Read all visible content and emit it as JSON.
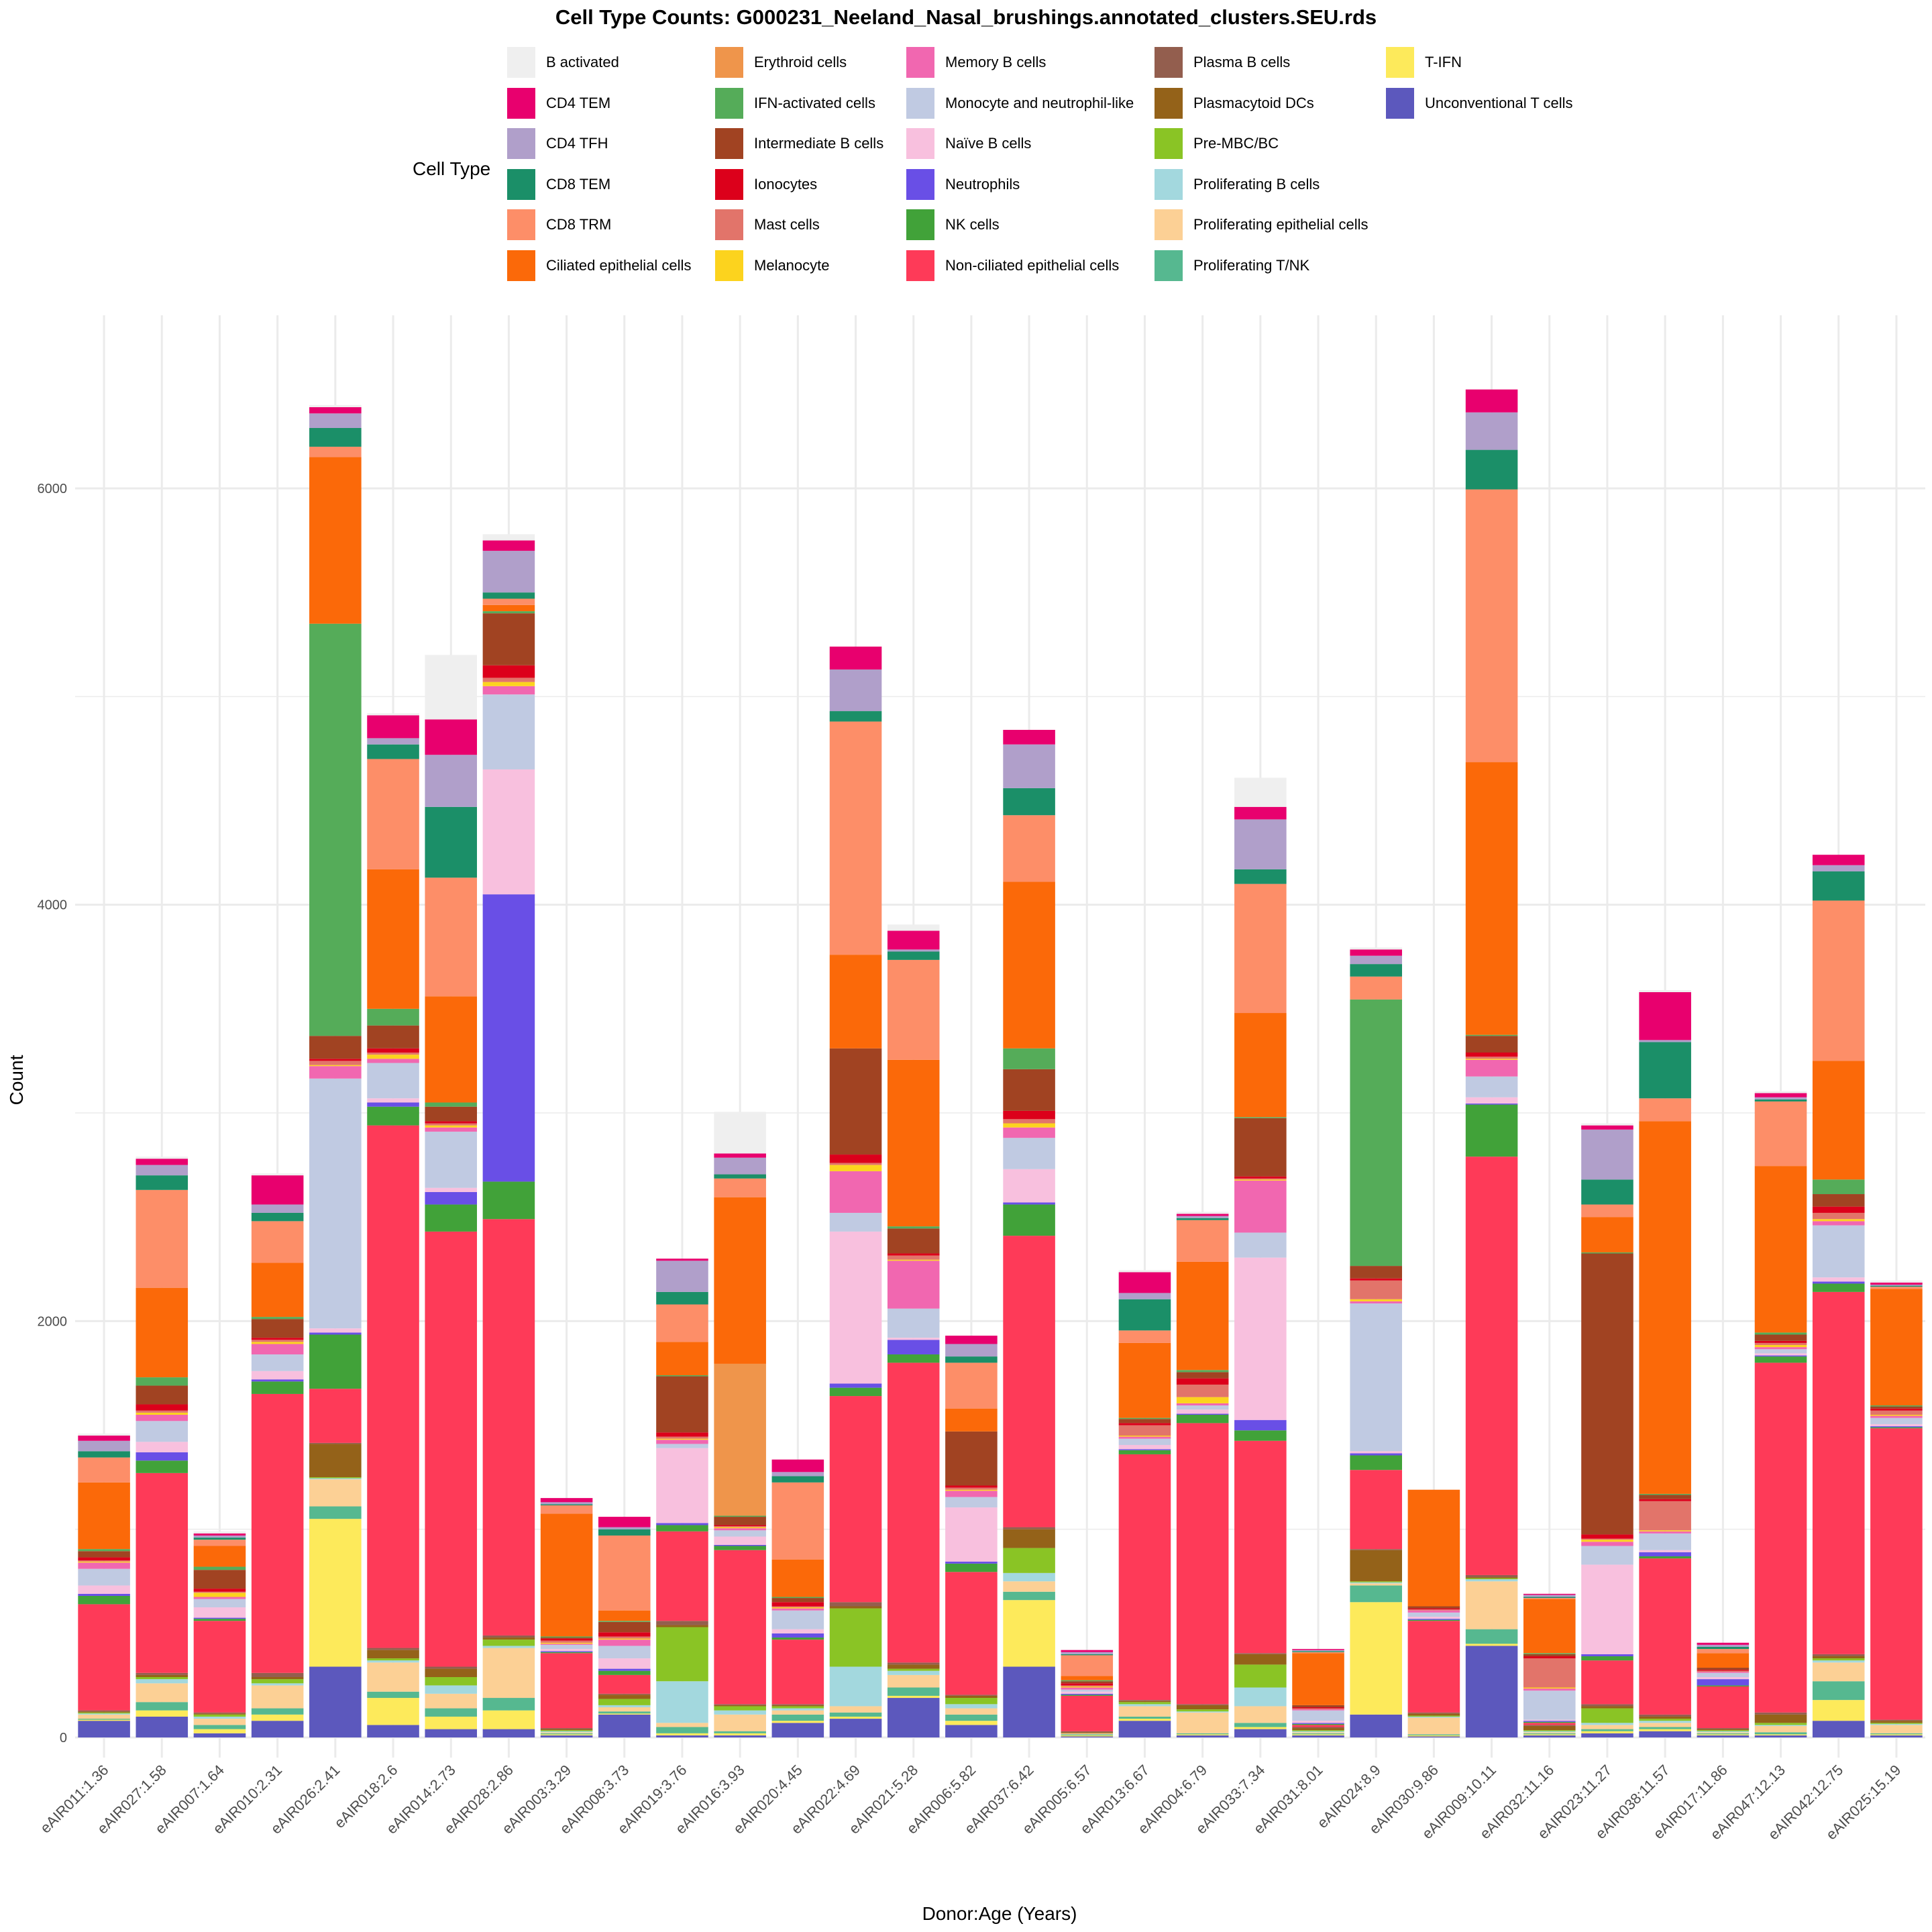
{
  "chart_data": {
    "type": "bar",
    "stacked": true,
    "title": "Cell Type Counts: G000231_Neeland_Nasal_brushings.annotated_clusters.SEU.rds",
    "xlabel": "Donor:Age (Years)",
    "ylabel": "Count",
    "ylim": [
      0,
      6800
    ],
    "yticks": [
      0,
      2000,
      4000,
      6000
    ],
    "grid": true,
    "legend_title": "Cell Type",
    "legend_position": "top",
    "categories": [
      "eAIR011:1.36",
      "eAIR027:1.58",
      "eAIR007:1.64",
      "eAIR010:2.31",
      "eAIR026:2.41",
      "eAIR018:2.6",
      "eAIR014:2.73",
      "eAIR028:2.86",
      "eAIR003:3.29",
      "eAIR008:3.73",
      "eAIR019:3.76",
      "eAIR016:3.93",
      "eAIR020:4.45",
      "eAIR022:4.69",
      "eAIR021:5.28",
      "eAIR006:5.82",
      "eAIR037:6.42",
      "eAIR005:6.57",
      "eAIR013:6.67",
      "eAIR004:6.79",
      "eAIR033:7.34",
      "eAIR031:8.01",
      "eAIR024:8.9",
      "eAIR030:9.86",
      "eAIR009:10.11",
      "eAIR032:11.16",
      "eAIR023:11.27",
      "eAIR038:11.57",
      "eAIR017:11.86",
      "eAIR047:12.13",
      "eAIR042:12.75",
      "eAIR025:15.19"
    ],
    "series": [
      {
        "name": "B activated",
        "color": "#EFEFEF",
        "values": [
          10,
          10,
          10,
          10,
          10,
          10,
          310,
          30,
          0,
          0,
          0,
          200,
          0,
          0,
          30,
          0,
          0,
          0,
          10,
          10,
          140,
          0,
          10,
          0,
          0,
          0,
          10,
          10,
          0,
          10,
          0,
          10
        ]
      },
      {
        "name": "CD4 TEM",
        "color": "#E8006E",
        "values": [
          25,
          30,
          10,
          140,
          30,
          110,
          170,
          50,
          20,
          50,
          10,
          20,
          60,
          110,
          90,
          40,
          70,
          10,
          100,
          10,
          60,
          5,
          30,
          0,
          110,
          5,
          20,
          230,
          10,
          20,
          50,
          10
        ]
      },
      {
        "name": "CD4 TFH",
        "color": "#B09FCA",
        "values": [
          50,
          50,
          10,
          40,
          70,
          30,
          250,
          200,
          10,
          10,
          150,
          80,
          20,
          200,
          10,
          60,
          210,
          10,
          30,
          10,
          240,
          5,
          40,
          0,
          180,
          10,
          240,
          10,
          10,
          10,
          30,
          5
        ]
      },
      {
        "name": "CD8 TEM",
        "color": "#1B8F68",
        "values": [
          30,
          70,
          10,
          40,
          90,
          70,
          340,
          30,
          5,
          30,
          60,
          20,
          30,
          50,
          40,
          30,
          130,
          5,
          150,
          10,
          70,
          5,
          60,
          0,
          190,
          5,
          120,
          270,
          10,
          10,
          140,
          5
        ]
      },
      {
        "name": "CD8 TRM",
        "color": "#FD8E68",
        "values": [
          120,
          470,
          30,
          200,
          50,
          530,
          570,
          30,
          40,
          360,
          180,
          90,
          370,
          1120,
          480,
          220,
          320,
          100,
          60,
          200,
          620,
          5,
          110,
          0,
          1310,
          5,
          60,
          110,
          20,
          310,
          770,
          10
        ]
      },
      {
        "name": "Ciliated epithelial cells",
        "color": "#FB6909",
        "values": [
          320,
          430,
          100,
          260,
          800,
          670,
          510,
          30,
          590,
          50,
          160,
          800,
          180,
          450,
          800,
          110,
          800,
          20,
          360,
          520,
          500,
          250,
          0,
          560,
          1310,
          260,
          170,
          1790,
          70,
          800,
          570,
          560
        ]
      },
      {
        "name": "Erythroid cells",
        "color": "#EF954B",
        "values": [
          0,
          0,
          0,
          0,
          0,
          0,
          0,
          0,
          0,
          0,
          0,
          730,
          0,
          0,
          0,
          0,
          0,
          0,
          0,
          0,
          0,
          0,
          0,
          0,
          0,
          0,
          0,
          0,
          0,
          0,
          0,
          0
        ]
      },
      {
        "name": "IFN-activated cells",
        "color": "#55AC59",
        "values": [
          10,
          40,
          15,
          10,
          1980,
          80,
          20,
          10,
          5,
          5,
          5,
          5,
          5,
          0,
          10,
          0,
          100,
          5,
          5,
          10,
          5,
          0,
          1280,
          0,
          5,
          5,
          5,
          5,
          0,
          10,
          70,
          5
        ]
      },
      {
        "name": "Intermediate B cells",
        "color": "#A14322",
        "values": [
          30,
          90,
          90,
          90,
          110,
          110,
          70,
          250,
          5,
          50,
          270,
          40,
          20,
          510,
          120,
          260,
          200,
          10,
          20,
          30,
          280,
          10,
          60,
          10,
          80,
          10,
          1350,
          20,
          10,
          30,
          60,
          10
        ]
      },
      {
        "name": "Ionocytes",
        "color": "#DC001B",
        "values": [
          15,
          30,
          15,
          10,
          10,
          20,
          10,
          60,
          10,
          20,
          20,
          5,
          20,
          40,
          10,
          10,
          40,
          10,
          10,
          30,
          10,
          5,
          10,
          5,
          20,
          10,
          20,
          10,
          5,
          10,
          30,
          10
        ]
      },
      {
        "name": "Mast cells",
        "color": "#E2746A",
        "values": [
          5,
          10,
          5,
          10,
          20,
          10,
          10,
          20,
          10,
          10,
          10,
          5,
          5,
          10,
          20,
          10,
          20,
          5,
          50,
          60,
          5,
          5,
          90,
          5,
          10,
          140,
          5,
          140,
          5,
          10,
          30,
          20
        ]
      },
      {
        "name": "Melanocyte",
        "color": "#FCD31E",
        "values": [
          5,
          10,
          20,
          10,
          5,
          20,
          10,
          20,
          5,
          5,
          5,
          5,
          5,
          30,
          5,
          5,
          20,
          5,
          5,
          30,
          5,
          0,
          10,
          0,
          5,
          5,
          10,
          5,
          0,
          10,
          10,
          5
        ]
      },
      {
        "name": "Memory B cells",
        "color": "#F167B0",
        "values": [
          30,
          30,
          10,
          50,
          60,
          20,
          20,
          40,
          5,
          30,
          20,
          10,
          10,
          200,
          230,
          30,
          50,
          10,
          10,
          10,
          250,
          5,
          10,
          10,
          80,
          10,
          20,
          10,
          5,
          10,
          20,
          10
        ]
      },
      {
        "name": "Monocyte and neutrophil-like",
        "color": "#C0CAE2",
        "values": [
          80,
          100,
          40,
          80,
          1200,
          170,
          270,
          360,
          20,
          60,
          20,
          30,
          90,
          90,
          140,
          50,
          150,
          10,
          30,
          20,
          120,
          50,
          710,
          20,
          100,
          140,
          90,
          80,
          20,
          20,
          250,
          30
        ]
      },
      {
        "name": "Naïve B cells",
        "color": "#F8C0DE",
        "values": [
          40,
          50,
          50,
          40,
          20,
          20,
          20,
          600,
          10,
          50,
          360,
          40,
          20,
          730,
          10,
          260,
          160,
          10,
          20,
          20,
          780,
          10,
          10,
          10,
          30,
          5,
          430,
          10,
          10,
          10,
          20,
          10
        ]
      },
      {
        "name": "Neutrophils",
        "color": "#694FE6",
        "values": [
          10,
          40,
          5,
          10,
          10,
          20,
          60,
          1380,
          5,
          10,
          10,
          5,
          20,
          20,
          70,
          10,
          10,
          5,
          5,
          5,
          50,
          5,
          10,
          5,
          5,
          5,
          10,
          20,
          30,
          5,
          10,
          5
        ]
      },
      {
        "name": "NK cells",
        "color": "#41A239",
        "values": [
          40,
          60,
          10,
          60,
          260,
          90,
          130,
          180,
          5,
          20,
          30,
          20,
          10,
          40,
          40,
          40,
          150,
          5,
          20,
          40,
          50,
          5,
          70,
          5,
          250,
          5,
          20,
          10,
          5,
          30,
          40,
          5
        ]
      },
      {
        "name": "Non-ciliated epithelial cells",
        "color": "#FE3A58",
        "values": [
          510,
          960,
          440,
          1340,
          260,
          2510,
          2090,
          2000,
          360,
          90,
          430,
          740,
          310,
          990,
          1440,
          590,
          1400,
          170,
          1180,
          1350,
          1020,
          10,
          380,
          440,
          2010,
          10,
          210,
          750,
          200,
          1680,
          1740,
          1400
        ]
      },
      {
        "name": "Plasma B cells",
        "color": "#935E4E",
        "values": [
          5,
          10,
          5,
          20,
          5,
          10,
          10,
          10,
          5,
          5,
          20,
          5,
          5,
          20,
          10,
          5,
          10,
          5,
          5,
          5,
          5,
          5,
          5,
          5,
          10,
          5,
          10,
          10,
          5,
          10,
          10,
          5
        ]
      },
      {
        "name": "Plasmacytoid DCs",
        "color": "#946219",
        "values": [
          5,
          10,
          5,
          10,
          160,
          40,
          40,
          10,
          5,
          20,
          10,
          5,
          5,
          10,
          20,
          10,
          90,
          5,
          5,
          20,
          50,
          10,
          150,
          10,
          5,
          20,
          10,
          10,
          5,
          40,
          10,
          10
        ]
      },
      {
        "name": "Pre-MBC/BC",
        "color": "#8AC425",
        "values": [
          5,
          10,
          10,
          20,
          5,
          10,
          40,
          30,
          5,
          30,
          260,
          20,
          10,
          280,
          10,
          30,
          120,
          0,
          10,
          10,
          110,
          5,
          5,
          5,
          5,
          5,
          70,
          10,
          5,
          10,
          10,
          5
        ]
      },
      {
        "name": "Proliferating B cells",
        "color": "#A3D8DE",
        "values": [
          5,
          20,
          10,
          10,
          5,
          10,
          40,
          10,
          5,
          10,
          200,
          20,
          10,
          190,
          20,
          20,
          40,
          0,
          10,
          5,
          90,
          5,
          5,
          5,
          10,
          5,
          10,
          10,
          5,
          5,
          10,
          5
        ]
      },
      {
        "name": "Proliferating epithelial cells",
        "color": "#FCD095",
        "values": [
          20,
          90,
          30,
          110,
          130,
          140,
          70,
          240,
          5,
          20,
          20,
          80,
          20,
          30,
          60,
          30,
          50,
          5,
          50,
          100,
          80,
          5,
          10,
          80,
          230,
          5,
          20,
          20,
          5,
          30,
          90,
          40
        ]
      },
      {
        "name": "Proliferating T/NK",
        "color": "#56B890",
        "values": [
          5,
          40,
          20,
          30,
          60,
          30,
          40,
          60,
          5,
          10,
          30,
          10,
          30,
          20,
          40,
          30,
          40,
          5,
          10,
          5,
          20,
          5,
          80,
          5,
          70,
          5,
          10,
          10,
          5,
          10,
          90,
          5
        ]
      },
      {
        "name": "T-IFN",
        "color": "#FDEA5B",
        "values": [
          5,
          30,
          20,
          30,
          710,
          130,
          60,
          90,
          5,
          5,
          10,
          10,
          10,
          10,
          10,
          20,
          320,
          5,
          10,
          5,
          10,
          5,
          540,
          5,
          10,
          5,
          10,
          10,
          5,
          5,
          100,
          5
        ]
      },
      {
        "name": "Unconventional T cells",
        "color": "#5C58BD",
        "values": [
          80,
          100,
          20,
          80,
          340,
          60,
          40,
          40,
          10,
          110,
          10,
          10,
          70,
          90,
          190,
          60,
          340,
          5,
          80,
          10,
          40,
          10,
          110,
          5,
          440,
          10,
          20,
          30,
          10,
          10,
          80,
          10
        ]
      }
    ]
  }
}
